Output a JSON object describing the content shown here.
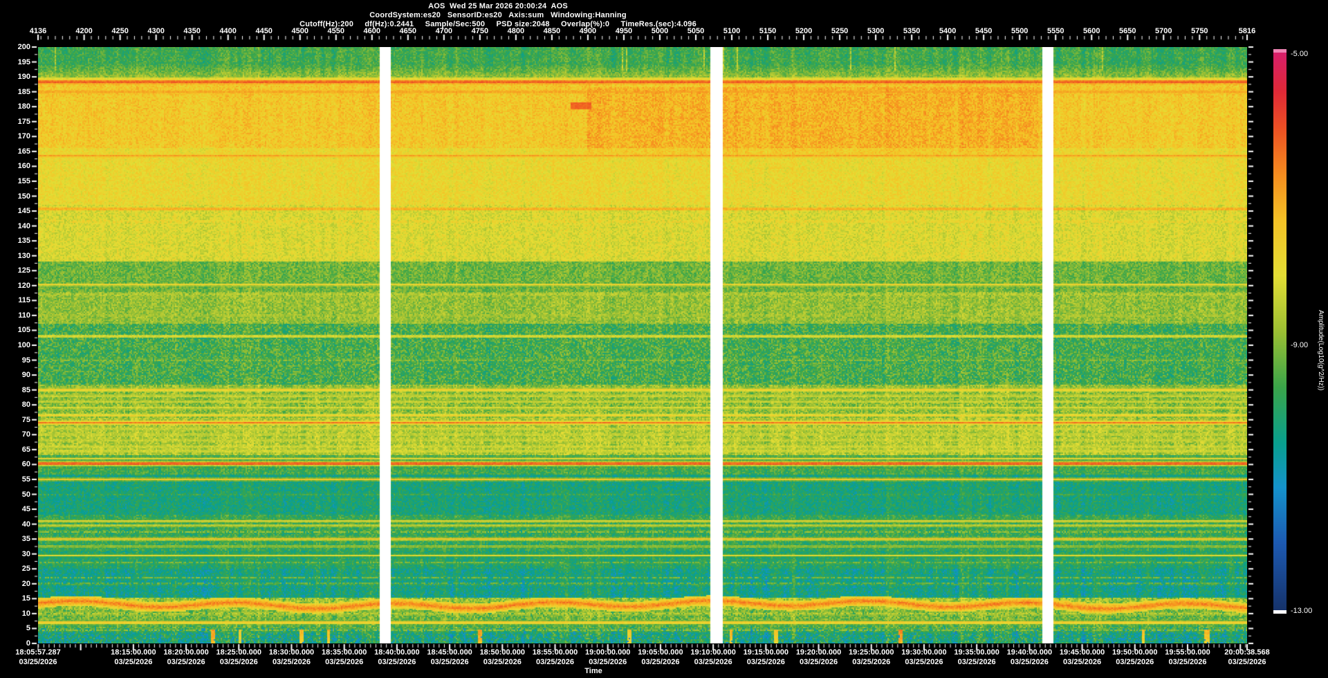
{
  "header": {
    "line1": "AOS  Wed 25 Mar 2026 20:00:24  AOS",
    "line2": "CoordSystem:es20   SensorID:es20   Axis:sum   Windowing:Hanning",
    "line3": "Cutoff(Hz):200     df(Hz):0.2441     Sample/Sec:500     PSD size:2048     Overlap(%):0     TimeRes.(sec):4.096"
  },
  "chart_data": {
    "type": "heatmap",
    "subtype": "spectrogram",
    "title": "AOS  Wed 25 Mar 2026 20:00:24  AOS",
    "top_axis": {
      "min": 4136,
      "max": 5816,
      "minor_step": 10,
      "tick_labels": [
        4136,
        4200,
        4250,
        4300,
        4350,
        4400,
        4450,
        4500,
        4550,
        4600,
        4650,
        4700,
        4750,
        4800,
        4850,
        4900,
        4950,
        5000,
        5050,
        5100,
        5150,
        5200,
        5250,
        5300,
        5350,
        5400,
        5450,
        5500,
        5550,
        5600,
        5650,
        5700,
        5750,
        5816
      ]
    },
    "freq_axis": {
      "min": 0,
      "max": 200,
      "label_step": 5,
      "minor_step": 2.5,
      "tick_labels": [
        0,
        5,
        10,
        15,
        20,
        25,
        30,
        35,
        40,
        45,
        50,
        55,
        60,
        65,
        70,
        75,
        80,
        85,
        90,
        95,
        100,
        105,
        110,
        115,
        120,
        125,
        130,
        135,
        140,
        145,
        150,
        155,
        160,
        165,
        170,
        175,
        180,
        185,
        190,
        195,
        200
      ]
    },
    "time_axis": {
      "title": "Time",
      "date": "03/25/2026",
      "start": "18:05:57.287",
      "end": "20:00:38.568",
      "minor_step_sec": 30,
      "major_step_sec": 300,
      "labels": [
        "18:05:57.287",
        "18:15:00.000",
        "18:20:00.000",
        "18:25:00.000",
        "18:30:00.000",
        "18:35:00.000",
        "18:40:00.000",
        "18:45:00.000",
        "18:50:00.000",
        "18:55:00.000",
        "19:00:00.000",
        "19:05:00.000",
        "19:10:00.000",
        "19:15:00.000",
        "19:20:00.000",
        "19:25:00.000",
        "19:30:00.000",
        "19:35:00.000",
        "19:40:00.000",
        "19:45:00.000",
        "19:50:00.000",
        "19:55:00.000",
        "20:00:38.568"
      ]
    },
    "colorbar": {
      "title": "Amplitude(Log10(g^2/Hz))",
      "max_label": "-5.00",
      "mid_label": "-9.00",
      "min_label": "-13.00",
      "range": {
        "min": -13,
        "max": -5
      },
      "overflow_cap_color": "#ef84b4",
      "underflow_cap_color": "#ffffff",
      "stops": [
        [
          0.0,
          "#16336b"
        ],
        [
          0.12,
          "#1d5ab2"
        ],
        [
          0.22,
          "#1593cc"
        ],
        [
          0.3,
          "#09a08f"
        ],
        [
          0.4,
          "#3ba54a"
        ],
        [
          0.5,
          "#9cc033"
        ],
        [
          0.6,
          "#e4de35"
        ],
        [
          0.7,
          "#f5c226"
        ],
        [
          0.78,
          "#f68e1f"
        ],
        [
          0.86,
          "#ee5323"
        ],
        [
          0.93,
          "#e02937"
        ],
        [
          1.0,
          "#d81f6b"
        ]
      ]
    },
    "data_gaps_blocks": [
      [
        4611,
        4626
      ],
      [
        5070,
        5088
      ],
      [
        5531,
        5546
      ]
    ],
    "background_bands": [
      [
        200,
        195,
        -9.75,
        0.45,
        1.6
      ],
      [
        195,
        190,
        -9.0,
        0.45,
        1.2
      ],
      [
        190,
        188.8,
        -8.1,
        0.4,
        0.8
      ],
      [
        188.8,
        166,
        -7.55,
        0.45,
        0.8
      ],
      [
        166,
        147,
        -7.95,
        0.42,
        0.8
      ],
      [
        147,
        128,
        -8.25,
        0.45,
        0.8
      ],
      [
        128,
        118,
        -9.35,
        0.5,
        0.9
      ],
      [
        118,
        107,
        -9.0,
        0.5,
        0.9
      ],
      [
        107,
        87,
        -9.7,
        0.68,
        1.0
      ],
      [
        87,
        75.5,
        -9.05,
        0.6,
        1.3
      ],
      [
        75.5,
        63,
        -8.75,
        0.55,
        1.4
      ],
      [
        63,
        56.5,
        -9.75,
        0.5,
        1.1
      ],
      [
        56.5,
        43,
        -10.3,
        0.5,
        1.2
      ],
      [
        43,
        31,
        -9.9,
        0.55,
        1.2
      ],
      [
        31,
        25,
        -10.1,
        0.5,
        1.4
      ],
      [
        25,
        15.5,
        -10.4,
        0.55,
        2.2
      ],
      [
        15.5,
        11,
        -8.9,
        0.7,
        1.8
      ],
      [
        11,
        8,
        -9.3,
        0.65,
        1.8
      ],
      [
        8,
        5,
        -9.65,
        0.7,
        2.0
      ],
      [
        5,
        0,
        -10.25,
        0.8,
        2.4
      ]
    ],
    "spectral_lines": [
      [
        188.3,
        -6.15,
        0.5,
        0
      ],
      [
        185,
        -7.0,
        0.4,
        0
      ],
      [
        163.5,
        -6.95,
        0.35,
        0
      ],
      [
        145.7,
        -6.8,
        0.35,
        0
      ],
      [
        141.5,
        -7.6,
        0.3,
        1
      ],
      [
        120.3,
        -7.7,
        0.3,
        0
      ],
      [
        117,
        -8.4,
        0.25,
        1
      ],
      [
        110,
        -8.8,
        0.25,
        1
      ],
      [
        103,
        -7.7,
        0.3,
        0
      ],
      [
        95,
        -9.0,
        0.25,
        1
      ],
      [
        85,
        -7.5,
        0.35,
        0
      ],
      [
        83,
        -8.3,
        0.25,
        0
      ],
      [
        81,
        -8.45,
        0.25,
        0
      ],
      [
        79,
        -8.2,
        0.25,
        0
      ],
      [
        76.5,
        -7.5,
        0.3,
        0
      ],
      [
        74,
        -6.5,
        0.4,
        0
      ],
      [
        72,
        -8.5,
        0.25,
        0
      ],
      [
        70,
        -8.6,
        0.25,
        0
      ],
      [
        68,
        -8.6,
        0.25,
        0
      ],
      [
        66,
        -8.4,
        0.25,
        0
      ],
      [
        64.5,
        -8.3,
        0.25,
        0
      ],
      [
        62,
        -7.9,
        0.3,
        0
      ],
      [
        60.3,
        -5.85,
        0.55,
        0
      ],
      [
        55,
        -7.5,
        0.4,
        0
      ],
      [
        50,
        -9.6,
        0.25,
        1
      ],
      [
        41,
        -8.0,
        0.35,
        0
      ],
      [
        39.5,
        -8.2,
        0.3,
        0
      ],
      [
        37.5,
        -8.7,
        0.25,
        1
      ],
      [
        35,
        -7.5,
        0.4,
        0
      ],
      [
        32.5,
        -8.5,
        0.25,
        0
      ],
      [
        29.5,
        -8.1,
        0.3,
        0
      ],
      [
        27,
        -9.0,
        0.25,
        1
      ],
      [
        22,
        -9.2,
        0.3,
        1
      ],
      [
        20,
        -9.0,
        0.3,
        1
      ],
      [
        10,
        -8.6,
        0.4,
        1
      ],
      [
        7,
        -7.4,
        0.45,
        0
      ],
      [
        4.5,
        -9.0,
        0.5,
        1
      ]
    ],
    "wavy_band": {
      "freq": 13,
      "val": -6.55,
      "halfwidth": 1.7
    },
    "hot_block": {
      "f_lo": 164,
      "f_hi": 186.5,
      "b0": 4900,
      "b1": 5525,
      "boost": 0.35
    },
    "red_smudge": {
      "f": 180.3,
      "b0": 4877,
      "b1": 4905,
      "val": -6.3
    }
  }
}
